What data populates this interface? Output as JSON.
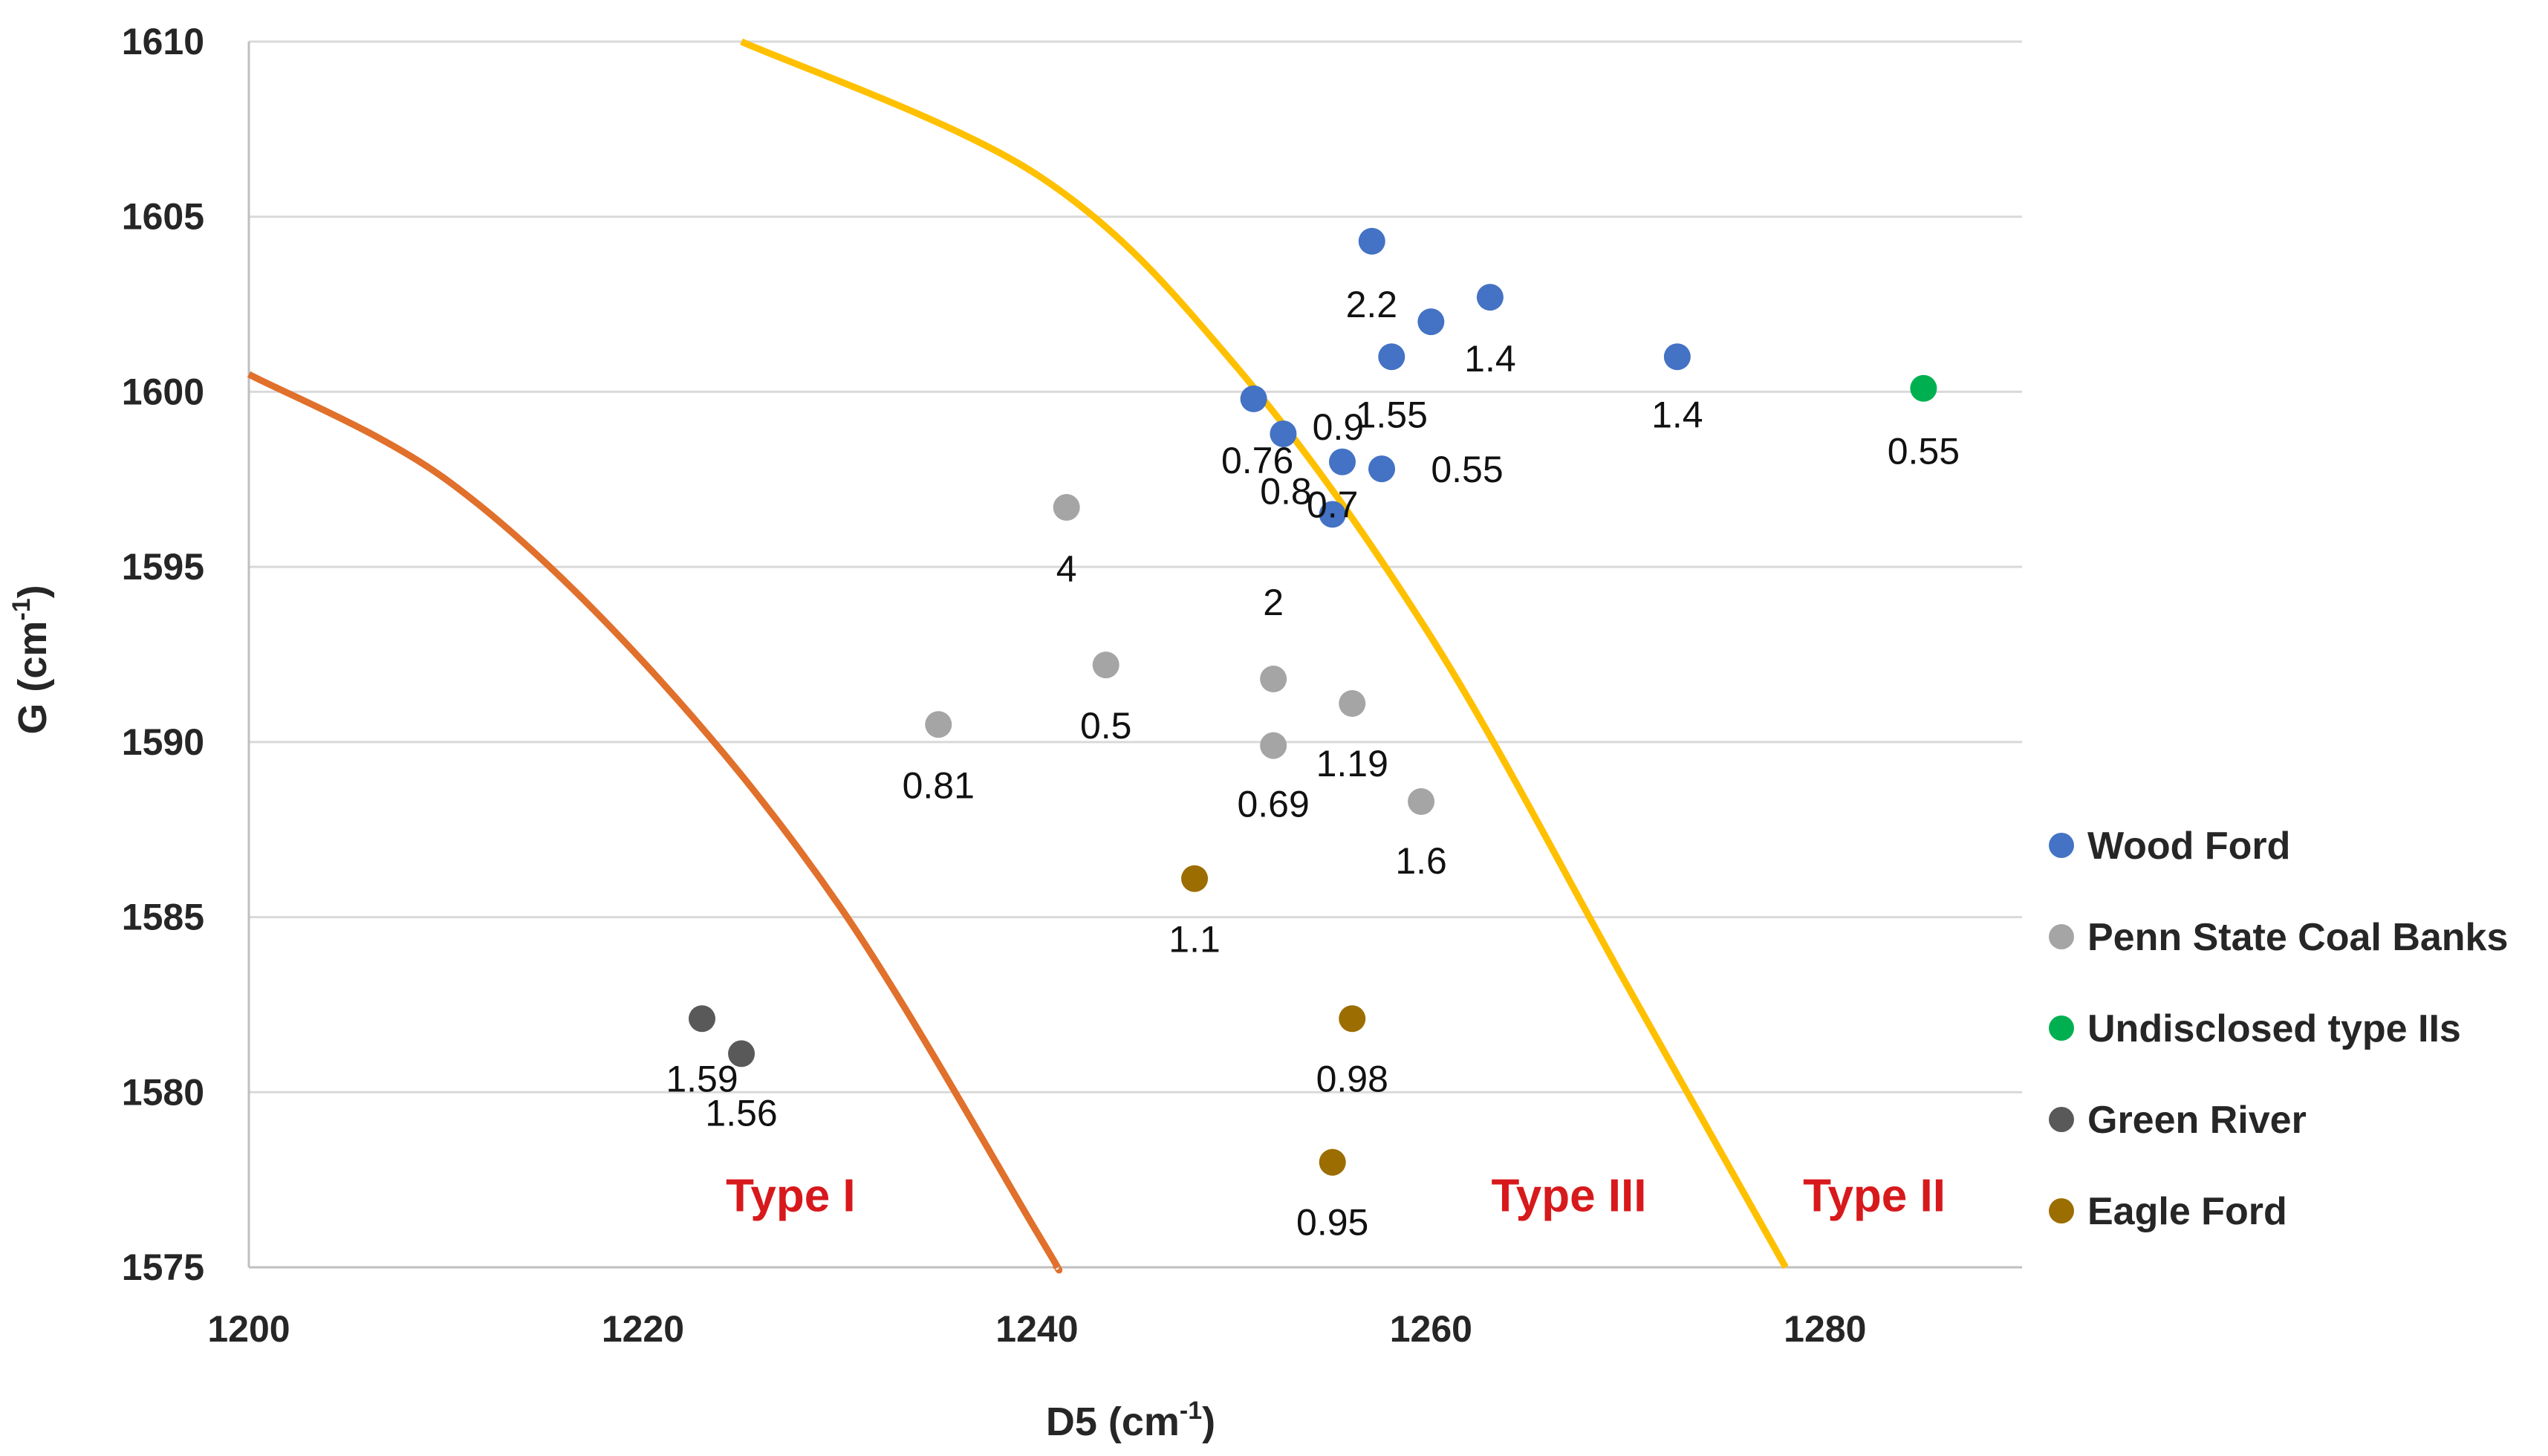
{
  "chart_data": {
    "type": "scatter",
    "title": "",
    "xlabel": "D5 (cm",
    "ylabel": "G (cm",
    "unit_sup": "-1",
    "axis_close": ")",
    "xlim": [
      1200,
      1290
    ],
    "ylim": [
      1575,
      1610
    ],
    "xticks": [
      "1200",
      "1220",
      "1240",
      "1260",
      "1280"
    ],
    "yticks": [
      "1575",
      "1580",
      "1585",
      "1590",
      "1595",
      "1600",
      "1605",
      "1610"
    ],
    "grid": "horizontal",
    "legend_position": "right",
    "series": [
      {
        "name": "Wood Ford",
        "color": "#4472c4",
        "points": [
          {
            "x": 1257.0,
            "y": 1604.3,
            "label": ""
          },
          {
            "x": 1260.0,
            "y": 1602.0,
            "label": "2.2"
          },
          {
            "x": 1263.0,
            "y": 1602.7,
            "label": "1.4"
          },
          {
            "x": 1258.0,
            "y": 1601.0,
            "label": "1.55"
          },
          {
            "x": 1272.5,
            "y": 1601.0,
            "label": "1.4"
          },
          {
            "x": 1251.0,
            "y": 1599.8,
            "label": "0.76"
          },
          {
            "x": 1252.5,
            "y": 1598.8,
            "label": "0.9"
          },
          {
            "x": 1255.5,
            "y": 1598.0,
            "label": "0.8"
          },
          {
            "x": 1257.5,
            "y": 1597.8,
            "label": "0.55"
          },
          {
            "x": 1255.0,
            "y": 1596.5,
            "label": "0.7"
          }
        ]
      },
      {
        "name": "Penn State Coal Banks",
        "color": "#a5a5a5",
        "points": [
          {
            "x": 1241.5,
            "y": 1596.7,
            "label": "4"
          },
          {
            "x": 1252.0,
            "y": 1591.8,
            "label": "2"
          },
          {
            "x": 1243.5,
            "y": 1592.2,
            "label": "0.5"
          },
          {
            "x": 1235.0,
            "y": 1590.5,
            "label": "0.81"
          },
          {
            "x": 1256.0,
            "y": 1591.1,
            "label": "1.19"
          },
          {
            "x": 1252.0,
            "y": 1589.9,
            "label": "0.69"
          },
          {
            "x": 1259.5,
            "y": 1588.3,
            "label": "1.6"
          }
        ]
      },
      {
        "name": "Undisclosed type IIs",
        "color": "#00b050",
        "points": [
          {
            "x": 1285.0,
            "y": 1600.1,
            "label": "0.55"
          }
        ]
      },
      {
        "name": "Green River",
        "color": "#595959",
        "points": [
          {
            "x": 1223.0,
            "y": 1582.1,
            "label": "1.59"
          },
          {
            "x": 1225.0,
            "y": 1581.1,
            "label": "1.56"
          }
        ]
      },
      {
        "name": "Eagle Ford",
        "color": "#9c6d00",
        "points": [
          {
            "x": 1248.0,
            "y": 1586.1,
            "label": "1.1"
          },
          {
            "x": 1256.0,
            "y": 1582.1,
            "label": "0.98"
          },
          {
            "x": 1255.0,
            "y": 1578.0,
            "label": "0.95"
          }
        ]
      }
    ],
    "boundaries": [
      {
        "name": "Type I boundary",
        "color": "#e0702b",
        "points": [
          [
            1200,
            1600.5
          ],
          [
            1210,
            1597.5
          ],
          [
            1220,
            1592.3
          ],
          [
            1230,
            1585.3
          ],
          [
            1240,
            1576.0
          ],
          [
            1241,
            1575.0
          ]
        ]
      },
      {
        "name": "Type III boundary",
        "color": "#ffc000",
        "points": [
          [
            1225,
            1610.0
          ],
          [
            1240,
            1606.2
          ],
          [
            1250,
            1600.8
          ],
          [
            1260,
            1593.0
          ],
          [
            1270,
            1583.0
          ],
          [
            1278,
            1575.0
          ]
        ]
      }
    ],
    "regions": [
      {
        "text": "Type I",
        "x": 1227.5,
        "y": 1576.6
      },
      {
        "text": "Type III",
        "x": 1267.0,
        "y": 1576.6
      },
      {
        "text": "Type II",
        "x": 1282.5,
        "y": 1576.6
      }
    ]
  }
}
